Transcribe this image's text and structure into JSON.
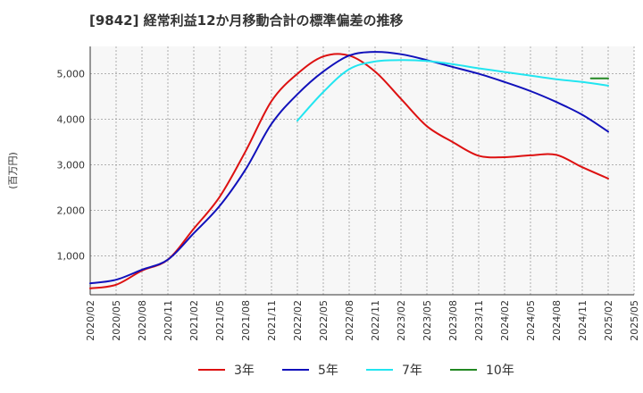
{
  "title": "[9842]  経常利益12か月移動合計の標準偏差の推移",
  "chart_data": {
    "type": "line",
    "title": "[9842]  経常利益12か月移動合計の標準偏差の推移",
    "ylabel": "(百万円)",
    "xlabel": "",
    "ylim": [
      150,
      5600
    ],
    "y_ticks": [
      1000,
      2000,
      3000,
      4000,
      5000
    ],
    "y_tick_labels": [
      "1,000",
      "2,000",
      "3,000",
      "4,000",
      "5,000"
    ],
    "x_tick_labels": [
      "2020/02",
      "2020/05",
      "2020/08",
      "2020/11",
      "2021/02",
      "2021/05",
      "2021/08",
      "2021/11",
      "2022/02",
      "2022/05",
      "2022/08",
      "2022/11",
      "2023/02",
      "2023/05",
      "2023/08",
      "2023/11",
      "2024/02",
      "2024/05",
      "2024/08",
      "2024/11",
      "2025/02",
      "2025/05"
    ],
    "grid": true,
    "legend_position": "bottom",
    "series": [
      {
        "name": "3年",
        "color": "#dd1111",
        "x": [
          "2020/02",
          "2020/05",
          "2020/08",
          "2020/11",
          "2021/02",
          "2021/05",
          "2021/08",
          "2021/11",
          "2022/02",
          "2022/05",
          "2022/08",
          "2022/11",
          "2023/02",
          "2023/05",
          "2023/08",
          "2023/11",
          "2024/02",
          "2024/05",
          "2024/08",
          "2024/11",
          "2025/02"
        ],
        "values": [
          290,
          370,
          680,
          920,
          1600,
          2300,
          3300,
          4400,
          5000,
          5380,
          5400,
          5050,
          4450,
          3850,
          3500,
          3200,
          3170,
          3210,
          3220,
          2950,
          2700
        ]
      },
      {
        "name": "5年",
        "color": "#1111bb",
        "x": [
          "2020/02",
          "2020/05",
          "2020/08",
          "2020/11",
          "2021/02",
          "2021/05",
          "2021/08",
          "2021/11",
          "2022/02",
          "2022/05",
          "2022/08",
          "2022/11",
          "2023/02",
          "2023/05",
          "2023/08",
          "2023/11",
          "2024/02",
          "2024/05",
          "2024/08",
          "2024/11",
          "2025/02"
        ],
        "values": [
          400,
          480,
          700,
          920,
          1500,
          2100,
          2900,
          3900,
          4550,
          5050,
          5400,
          5480,
          5430,
          5300,
          5150,
          5000,
          4820,
          4620,
          4380,
          4100,
          3730
        ]
      },
      {
        "name": "7年",
        "color": "#22e5f0",
        "x": [
          "2022/02",
          "2022/05",
          "2022/08",
          "2022/11",
          "2023/02",
          "2023/05",
          "2023/08",
          "2023/11",
          "2024/02",
          "2024/05",
          "2024/08",
          "2024/11",
          "2025/02"
        ],
        "values": [
          3970,
          4600,
          5100,
          5270,
          5300,
          5280,
          5210,
          5120,
          5040,
          4960,
          4880,
          4820,
          4740
        ]
      },
      {
        "name": "10年",
        "color": "#228822",
        "x": [
          "2024/12",
          "2025/02"
        ],
        "values": [
          4900,
          4900
        ]
      }
    ]
  }
}
